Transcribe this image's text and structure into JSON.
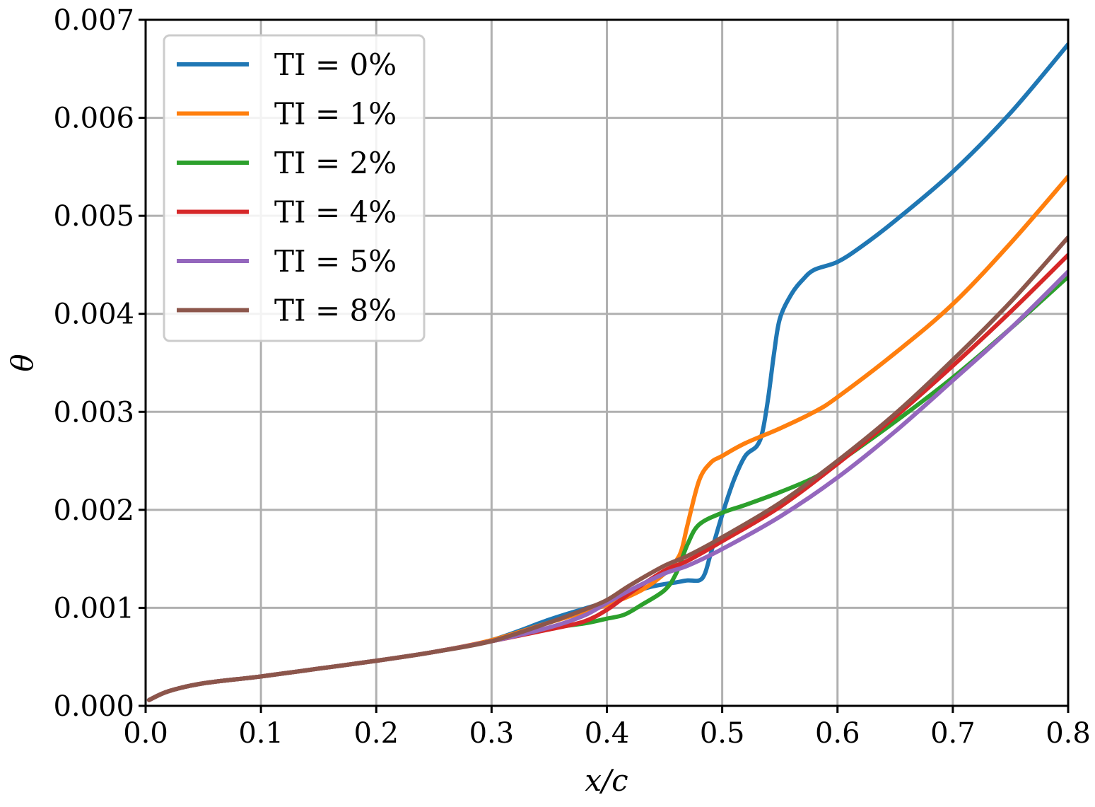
{
  "chart_data": {
    "type": "line",
    "title": "",
    "xlabel": "x/c",
    "ylabel": "θ",
    "xlim": [
      0.0,
      0.8
    ],
    "ylim": [
      0.0,
      0.007
    ],
    "xticks": [
      "0.0",
      "0.1",
      "0.2",
      "0.3",
      "0.4",
      "0.5",
      "0.6",
      "0.7",
      "0.8"
    ],
    "yticks": [
      "0.000",
      "0.001",
      "0.002",
      "0.003",
      "0.004",
      "0.005",
      "0.006",
      "0.007"
    ],
    "grid": true,
    "legend_position": "top-left",
    "series": [
      {
        "name": "TI = 0%",
        "color": "#1f77b4",
        "x": [
          0.003,
          0.02,
          0.05,
          0.1,
          0.15,
          0.2,
          0.25,
          0.3,
          0.35,
          0.38,
          0.4,
          0.42,
          0.44,
          0.46,
          0.47,
          0.48,
          0.485,
          0.49,
          0.5,
          0.51,
          0.52,
          0.53,
          0.535,
          0.54,
          0.545,
          0.55,
          0.56,
          0.57,
          0.58,
          0.6,
          0.62,
          0.65,
          0.7,
          0.75,
          0.8
        ],
        "y": [
          6e-05,
          0.00015,
          0.00023,
          0.0003,
          0.00038,
          0.00046,
          0.00055,
          0.00067,
          0.00088,
          0.00099,
          0.00106,
          0.00115,
          0.00122,
          0.00126,
          0.00128,
          0.00128,
          0.00135,
          0.00155,
          0.00195,
          0.0023,
          0.00255,
          0.00265,
          0.0028,
          0.00315,
          0.0036,
          0.00395,
          0.0042,
          0.00435,
          0.00445,
          0.00453,
          0.00468,
          0.00495,
          0.00545,
          0.00605,
          0.00675
        ]
      },
      {
        "name": "TI = 1%",
        "color": "#ff7f0e",
        "x": [
          0.003,
          0.02,
          0.05,
          0.1,
          0.15,
          0.2,
          0.25,
          0.3,
          0.35,
          0.4,
          0.43,
          0.45,
          0.46,
          0.465,
          0.47,
          0.48,
          0.49,
          0.5,
          0.52,
          0.55,
          0.58,
          0.6,
          0.65,
          0.7,
          0.75,
          0.8
        ],
        "y": [
          6e-05,
          0.00015,
          0.00023,
          0.0003,
          0.00038,
          0.00046,
          0.00055,
          0.00067,
          0.00085,
          0.00103,
          0.00118,
          0.00135,
          0.00148,
          0.0016,
          0.00185,
          0.0023,
          0.00248,
          0.00255,
          0.00268,
          0.00283,
          0.003,
          0.00315,
          0.0036,
          0.0041,
          0.00472,
          0.0054
        ]
      },
      {
        "name": "TI = 2%",
        "color": "#2ca02c",
        "x": [
          0.003,
          0.02,
          0.05,
          0.1,
          0.15,
          0.2,
          0.25,
          0.3,
          0.35,
          0.38,
          0.4,
          0.415,
          0.43,
          0.45,
          0.46,
          0.47,
          0.48,
          0.5,
          0.52,
          0.55,
          0.58,
          0.6,
          0.65,
          0.7,
          0.75,
          0.8
        ],
        "y": [
          6e-05,
          0.00015,
          0.00023,
          0.0003,
          0.00038,
          0.00046,
          0.00055,
          0.00066,
          0.00079,
          0.00084,
          0.00089,
          0.00093,
          0.00103,
          0.00118,
          0.00135,
          0.00165,
          0.00185,
          0.00197,
          0.00205,
          0.00218,
          0.00233,
          0.00248,
          0.0029,
          0.00335,
          0.00385,
          0.00438
        ]
      },
      {
        "name": "TI = 4%",
        "color": "#d62728",
        "x": [
          0.003,
          0.02,
          0.05,
          0.1,
          0.15,
          0.2,
          0.25,
          0.3,
          0.35,
          0.38,
          0.4,
          0.42,
          0.45,
          0.47,
          0.5,
          0.55,
          0.6,
          0.65,
          0.7,
          0.75,
          0.8
        ],
        "y": [
          6e-05,
          0.00015,
          0.00023,
          0.0003,
          0.00038,
          0.00046,
          0.00055,
          0.00066,
          0.00078,
          0.00086,
          0.00098,
          0.00115,
          0.00138,
          0.00148,
          0.00168,
          0.00203,
          0.00247,
          0.00295,
          0.00347,
          0.00402,
          0.0046
        ]
      },
      {
        "name": "TI = 5%",
        "color": "#9467bd",
        "x": [
          0.003,
          0.02,
          0.05,
          0.1,
          0.15,
          0.2,
          0.25,
          0.3,
          0.35,
          0.38,
          0.4,
          0.42,
          0.45,
          0.47,
          0.5,
          0.55,
          0.6,
          0.65,
          0.7,
          0.75,
          0.8
        ],
        "y": [
          6e-05,
          0.00015,
          0.00023,
          0.0003,
          0.00038,
          0.00046,
          0.00055,
          0.00066,
          0.0008,
          0.00092,
          0.00105,
          0.00118,
          0.00135,
          0.00143,
          0.0016,
          0.00193,
          0.00233,
          0.0028,
          0.00332,
          0.00385,
          0.00443
        ]
      },
      {
        "name": "TI = 8%",
        "color": "#8c564b",
        "x": [
          0.003,
          0.02,
          0.05,
          0.1,
          0.15,
          0.2,
          0.25,
          0.3,
          0.35,
          0.38,
          0.4,
          0.42,
          0.45,
          0.47,
          0.5,
          0.55,
          0.6,
          0.65,
          0.7,
          0.75,
          0.8
        ],
        "y": [
          6e-05,
          0.00015,
          0.00023,
          0.0003,
          0.00038,
          0.00046,
          0.00055,
          0.00066,
          0.00085,
          0.00098,
          0.00108,
          0.00123,
          0.00143,
          0.00153,
          0.00172,
          0.00207,
          0.0025,
          0.00298,
          0.00353,
          0.00412,
          0.00478
        ]
      }
    ]
  }
}
